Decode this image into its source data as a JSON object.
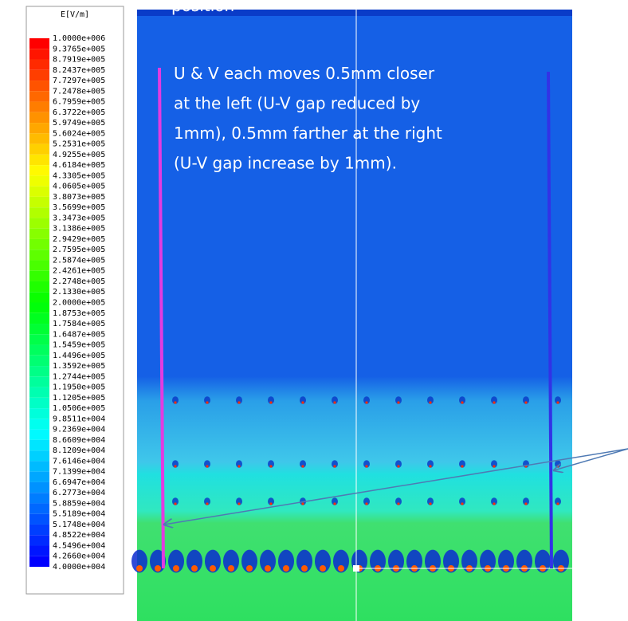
{
  "legend": {
    "title": "E[V/m]",
    "labels": [
      "1.0000e+006",
      "9.3765e+005",
      "8.7919e+005",
      "8.2437e+005",
      "7.7297e+005",
      "7.2478e+005",
      "6.7959e+005",
      "6.3722e+005",
      "5.9749e+005",
      "5.6024e+005",
      "5.2531e+005",
      "4.9255e+005",
      "4.6184e+005",
      "4.3305e+005",
      "4.0605e+005",
      "3.8073e+005",
      "3.5699e+005",
      "3.3473e+005",
      "3.1386e+005",
      "2.9429e+005",
      "2.7595e+005",
      "2.5874e+005",
      "2.4261e+005",
      "2.2748e+005",
      "2.1330e+005",
      "2.0000e+005",
      "1.8753e+005",
      "1.7584e+005",
      "1.6487e+005",
      "1.5459e+005",
      "1.4496e+005",
      "1.3592e+005",
      "1.2744e+005",
      "1.1950e+005",
      "1.1205e+005",
      "1.0506e+005",
      "9.8511e+004",
      "9.2369e+004",
      "8.6609e+004",
      "8.1209e+004",
      "7.6146e+004",
      "7.1399e+004",
      "6.6947e+004",
      "6.2773e+004",
      "5.8859e+004",
      "5.5189e+004",
      "5.1748e+004",
      "4.8522e+004",
      "4.5496e+004",
      "4.2660e+004",
      "4.0000e+004"
    ]
  },
  "annotation": {
    "heading": "position",
    "lines": [
      "U & V each moves 0.5mm closer",
      "at the left (U-V gap reduced by",
      "1mm), 0.5mm farther at the right",
      "(U-V gap increase by 1mm)."
    ]
  }
}
